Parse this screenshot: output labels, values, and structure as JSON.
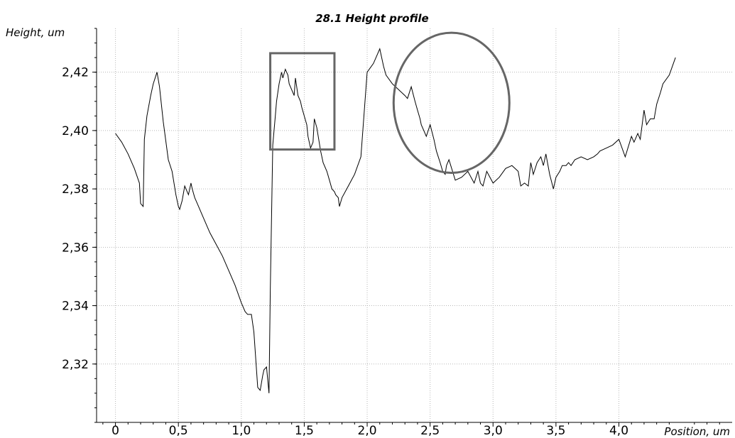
{
  "chart_data": {
    "type": "line",
    "title": "28.1 Height profile",
    "xlabel": "Position, um",
    "ylabel": "Height, um",
    "xlim": [
      -0.15,
      4.9
    ],
    "ylim": [
      2.3,
      2.435
    ],
    "x_ticks": [
      "0",
      "0,5",
      "1,0",
      "1,5",
      "2,0",
      "2,5",
      "3,0",
      "3,5",
      "4,0"
    ],
    "x_tick_values": [
      0,
      0.5,
      1.0,
      1.5,
      2.0,
      2.5,
      3.0,
      3.5,
      4.0
    ],
    "y_ticks": [
      "2,32",
      "2,34",
      "2,36",
      "2,38",
      "2,40",
      "2,42"
    ],
    "y_tick_values": [
      2.32,
      2.34,
      2.36,
      2.38,
      2.4,
      2.42
    ],
    "grid": true,
    "series": [
      {
        "x": [
          0,
          0.05,
          0.1,
          0.15,
          0.19,
          0.2,
          0.22,
          0.23,
          0.25,
          0.28,
          0.3,
          0.33,
          0.35,
          0.38,
          0.42,
          0.45,
          0.48,
          0.5,
          0.51,
          0.53,
          0.55,
          0.56,
          0.58,
          0.6,
          0.61,
          0.63,
          0.65,
          0.7,
          0.75,
          0.8,
          0.85,
          0.9,
          0.95,
          1.0,
          1.03,
          1.05,
          1.08,
          1.1,
          1.13,
          1.15,
          1.17,
          1.18,
          1.2,
          1.22,
          1.23,
          1.25,
          1.27,
          1.28,
          1.3,
          1.32,
          1.33,
          1.35,
          1.37,
          1.38,
          1.4,
          1.42,
          1.43,
          1.45,
          1.47,
          1.48,
          1.5,
          1.52,
          1.53,
          1.55,
          1.57,
          1.58,
          1.6,
          1.63,
          1.65,
          1.68,
          1.7,
          1.72,
          1.74,
          1.75,
          1.77,
          1.78,
          1.8,
          1.85,
          1.9,
          1.95,
          2.0,
          2.05,
          2.1,
          2.13,
          2.15,
          2.2,
          2.25,
          2.3,
          2.32,
          2.35,
          2.38,
          2.4,
          2.42,
          2.43,
          2.45,
          2.47,
          2.5,
          2.53,
          2.55,
          2.58,
          2.6,
          2.62,
          2.63,
          2.65,
          2.7,
          2.75,
          2.8,
          2.85,
          2.88,
          2.9,
          2.92,
          2.95,
          3.0,
          3.05,
          3.1,
          3.15,
          3.2,
          3.22,
          3.25,
          3.28,
          3.3,
          3.32,
          3.35,
          3.38,
          3.4,
          3.42,
          3.45,
          3.48,
          3.5,
          3.53,
          3.55,
          3.58,
          3.6,
          3.62,
          3.65,
          3.7,
          3.75,
          3.8,
          3.83,
          3.85,
          3.9,
          3.95,
          4.0,
          4.05,
          4.1,
          4.12,
          4.15,
          4.17,
          4.2,
          4.22,
          4.25,
          4.28,
          4.3,
          4.33,
          4.35,
          4.4,
          4.45
        ],
        "y": [
          2.399,
          2.396,
          2.392,
          2.387,
          2.382,
          2.375,
          2.374,
          2.397,
          2.405,
          2.412,
          2.416,
          2.42,
          2.415,
          2.403,
          2.39,
          2.386,
          2.378,
          2.374,
          2.373,
          2.376,
          2.381,
          2.38,
          2.378,
          2.382,
          2.38,
          2.377,
          2.375,
          2.37,
          2.365,
          2.361,
          2.357,
          2.352,
          2.347,
          2.341,
          2.338,
          2.337,
          2.337,
          2.331,
          2.312,
          2.311,
          2.316,
          2.318,
          2.319,
          2.31,
          2.345,
          2.395,
          2.405,
          2.41,
          2.416,
          2.42,
          2.418,
          2.421,
          2.419,
          2.416,
          2.414,
          2.412,
          2.418,
          2.412,
          2.41,
          2.408,
          2.405,
          2.402,
          2.398,
          2.394,
          2.396,
          2.404,
          2.401,
          2.393,
          2.389,
          2.386,
          2.383,
          2.38,
          2.379,
          2.378,
          2.377,
          2.374,
          2.377,
          2.381,
          2.385,
          2.391,
          2.42,
          2.423,
          2.428,
          2.422,
          2.419,
          2.416,
          2.414,
          2.412,
          2.411,
          2.415,
          2.41,
          2.407,
          2.404,
          2.402,
          2.4,
          2.398,
          2.402,
          2.397,
          2.393,
          2.389,
          2.386,
          2.385,
          2.388,
          2.39,
          2.383,
          2.384,
          2.386,
          2.382,
          2.386,
          2.382,
          2.381,
          2.386,
          2.382,
          2.384,
          2.387,
          2.388,
          2.386,
          2.381,
          2.382,
          2.381,
          2.389,
          2.385,
          2.389,
          2.391,
          2.388,
          2.392,
          2.385,
          2.38,
          2.384,
          2.386,
          2.388,
          2.388,
          2.389,
          2.388,
          2.39,
          2.391,
          2.39,
          2.391,
          2.392,
          2.393,
          2.394,
          2.395,
          2.397,
          2.391,
          2.398,
          2.396,
          2.399,
          2.397,
          2.407,
          2.402,
          2.404,
          2.404,
          2.409,
          2.413,
          2.416,
          2.419,
          2.425
        ]
      }
    ]
  },
  "annotations": [
    {
      "type": "rectangle",
      "x": [
        1.23,
        1.74
      ],
      "y": [
        2.3935,
        2.4265
      ]
    },
    {
      "type": "ellipse",
      "x": [
        2.21,
        3.13
      ],
      "y": [
        2.3855,
        2.4335
      ]
    }
  ]
}
